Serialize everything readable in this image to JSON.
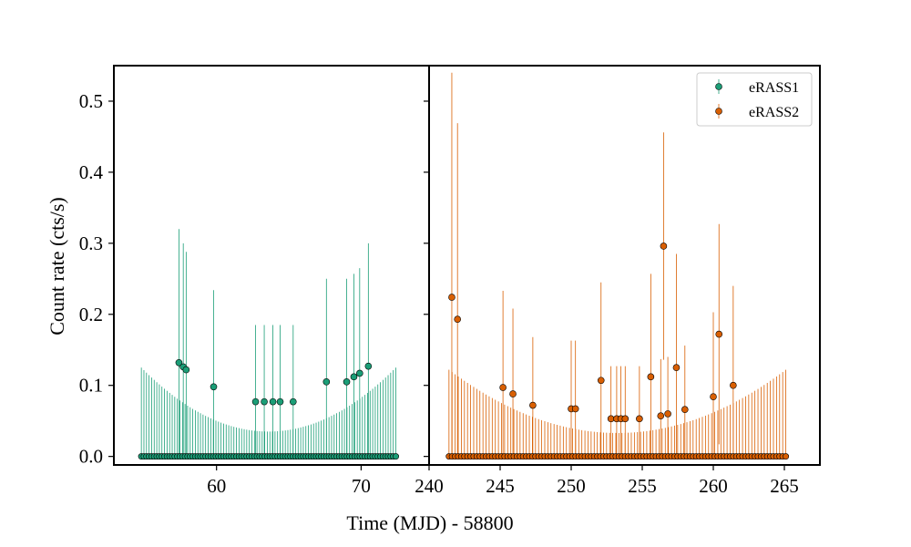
{
  "chart_data": {
    "type": "scatter",
    "title": "",
    "xlabel": "Time (MJD) - 58800",
    "ylabel": "Count rate (cts/s)",
    "ylim": [
      -0.012,
      0.55
    ],
    "yticks": [
      0.0,
      0.1,
      0.2,
      0.3,
      0.4,
      0.5
    ],
    "ytick_labels": [
      "0.0",
      "0.1",
      "0.2",
      "0.3",
      "0.4",
      "0.5"
    ],
    "legend": {
      "placement": "top-right",
      "entries": [
        "eRASS1",
        "eRASS2"
      ]
    },
    "grid": false,
    "panels": [
      {
        "series_name": "eRASS1",
        "color": "#1b9e77",
        "xlim": [
          52.9,
          74.7
        ],
        "xticks": [
          60,
          70
        ],
        "xtick_labels": [
          "60",
          "70"
        ],
        "zero_points": {
          "x_start": 54.8,
          "x_end": 72.4,
          "count": 100,
          "err_edge": 0.125,
          "err_min": 0.035
        },
        "points": [
          {
            "x": 57.4,
            "y": 0.132,
            "err": 0.188
          },
          {
            "x": 57.7,
            "y": 0.126,
            "err": 0.174
          },
          {
            "x": 57.9,
            "y": 0.122,
            "err": 0.166
          },
          {
            "x": 59.8,
            "y": 0.098,
            "err": 0.136
          },
          {
            "x": 62.7,
            "y": 0.077,
            "err": 0.108
          },
          {
            "x": 63.3,
            "y": 0.077,
            "err": 0.108
          },
          {
            "x": 63.9,
            "y": 0.077,
            "err": 0.108
          },
          {
            "x": 64.4,
            "y": 0.077,
            "err": 0.108
          },
          {
            "x": 65.3,
            "y": 0.077,
            "err": 0.108
          },
          {
            "x": 67.6,
            "y": 0.105,
            "err": 0.145
          },
          {
            "x": 69.0,
            "y": 0.105,
            "err": 0.145
          },
          {
            "x": 69.5,
            "y": 0.112,
            "err": 0.145
          },
          {
            "x": 69.9,
            "y": 0.117,
            "err": 0.148
          },
          {
            "x": 70.5,
            "y": 0.127,
            "err": 0.173
          }
        ]
      },
      {
        "series_name": "eRASS2",
        "color": "#d95f02",
        "xlim": [
          240.0,
          267.5
        ],
        "xticks": [
          240,
          245,
          250,
          255,
          260,
          265
        ],
        "xtick_labels": [
          "240",
          "245",
          "250",
          "255",
          "260",
          "265"
        ],
        "zero_points": {
          "x_start": 241.4,
          "x_end": 265.1,
          "count": 110,
          "err_edge": 0.122,
          "err_min": 0.033
        },
        "points": [
          {
            "x": 241.6,
            "y": 0.224,
            "err": 0.316
          },
          {
            "x": 242.0,
            "y": 0.193,
            "err": 0.276
          },
          {
            "x": 245.2,
            "y": 0.097,
            "err": 0.136
          },
          {
            "x": 245.9,
            "y": 0.088,
            "err": 0.12
          },
          {
            "x": 247.3,
            "y": 0.072,
            "err": 0.096
          },
          {
            "x": 250.0,
            "y": 0.067,
            "err": 0.096
          },
          {
            "x": 250.3,
            "y": 0.067,
            "err": 0.096
          },
          {
            "x": 252.1,
            "y": 0.107,
            "err": 0.138
          },
          {
            "x": 252.8,
            "y": 0.053,
            "err": 0.074
          },
          {
            "x": 253.2,
            "y": 0.053,
            "err": 0.074
          },
          {
            "x": 253.5,
            "y": 0.053,
            "err": 0.074
          },
          {
            "x": 253.8,
            "y": 0.053,
            "err": 0.074
          },
          {
            "x": 254.8,
            "y": 0.053,
            "err": 0.074
          },
          {
            "x": 255.6,
            "y": 0.112,
            "err": 0.145
          },
          {
            "x": 256.3,
            "y": 0.057,
            "err": 0.08
          },
          {
            "x": 256.5,
            "y": 0.296,
            "err": 0.16
          },
          {
            "x": 256.8,
            "y": 0.06,
            "err": 0.08
          },
          {
            "x": 257.4,
            "y": 0.125,
            "err": 0.16
          },
          {
            "x": 258.0,
            "y": 0.066,
            "err": 0.09
          },
          {
            "x": 260.0,
            "y": 0.084,
            "err": 0.119
          },
          {
            "x": 260.4,
            "y": 0.172,
            "err": 0.155
          },
          {
            "x": 261.4,
            "y": 0.1,
            "err": 0.14
          }
        ]
      }
    ]
  }
}
